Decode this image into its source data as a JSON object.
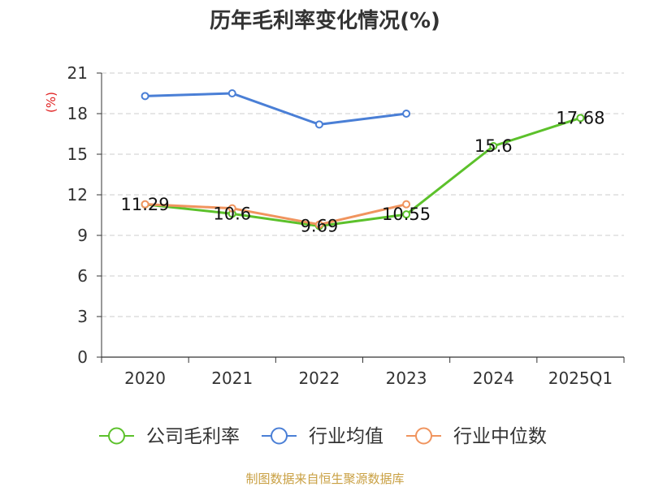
{
  "chart_data": {
    "type": "line",
    "title": "历年毛利率变化情况(%)",
    "ylabel": "(%)",
    "categories": [
      "2020",
      "2021",
      "2022",
      "2023",
      "2024",
      "2025Q1"
    ],
    "ylim": [
      0,
      21
    ],
    "yticks": [
      0,
      3,
      6,
      9,
      12,
      15,
      18,
      21
    ],
    "grid": true,
    "grid_style": "dashed",
    "legend_position": "bottom",
    "series": [
      {
        "name": "公司毛利率",
        "color": "#5cc12b",
        "values": [
          11.29,
          10.6,
          9.69,
          10.55,
          15.6,
          17.68
        ],
        "show_labels": true
      },
      {
        "name": "行业均值",
        "color": "#4a7fd6",
        "values": [
          19.3,
          19.5,
          17.2,
          18.0,
          null,
          null
        ],
        "show_labels": false
      },
      {
        "name": "行业中位数",
        "color": "#f0945e",
        "values": [
          11.3,
          11.0,
          9.8,
          11.3,
          null,
          null
        ],
        "show_labels": false
      }
    ]
  },
  "footer": {
    "source": "制图数据来自恒生聚源数据库"
  },
  "colors": {
    "ylabel": "#e02020",
    "footer": "#c9a043",
    "axis": "#333333",
    "grid": "#cccccc"
  }
}
